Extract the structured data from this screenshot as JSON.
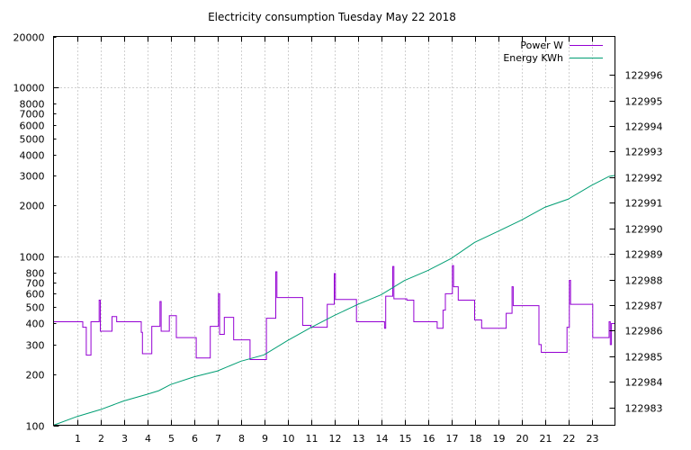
{
  "chart_data": {
    "type": "line",
    "title": "Electricity consumption Tuesday May 22 2018",
    "xlabel": "",
    "ylabel": "",
    "xlim": [
      0,
      24
    ],
    "x_ticks": [
      1,
      2,
      3,
      4,
      5,
      6,
      7,
      8,
      9,
      10,
      11,
      12,
      13,
      14,
      15,
      16,
      17,
      18,
      19,
      20,
      21,
      22,
      23
    ],
    "y_scale": "log",
    "ylim": [
      100,
      20000
    ],
    "y_ticks": [
      100,
      200,
      300,
      400,
      500,
      600,
      700,
      800,
      1000,
      2000,
      3000,
      4000,
      5000,
      6000,
      7000,
      8000,
      10000,
      20000
    ],
    "y2lim": [
      122982.3,
      122997.5
    ],
    "y2_ticks": [
      122983,
      122984,
      122985,
      122986,
      122987,
      122988,
      122989,
      122990,
      122991,
      122992,
      122993,
      122994,
      122995,
      122996
    ],
    "grid": true,
    "legend_position": "top-right",
    "series": [
      {
        "name": "Power W",
        "axis": "y",
        "color": "#9400d3",
        "points": [
          [
            0.0,
            410
          ],
          [
            1.25,
            410
          ],
          [
            1.25,
            380
          ],
          [
            1.4,
            380
          ],
          [
            1.4,
            260
          ],
          [
            1.6,
            260
          ],
          [
            1.6,
            410
          ],
          [
            1.95,
            410
          ],
          [
            1.95,
            550
          ],
          [
            2.0,
            550
          ],
          [
            2.0,
            360
          ],
          [
            2.5,
            360
          ],
          [
            2.5,
            440
          ],
          [
            2.7,
            440
          ],
          [
            2.7,
            410
          ],
          [
            3.75,
            410
          ],
          [
            3.75,
            355
          ],
          [
            3.8,
            355
          ],
          [
            3.8,
            265
          ],
          [
            4.2,
            265
          ],
          [
            4.2,
            385
          ],
          [
            4.55,
            385
          ],
          [
            4.55,
            540
          ],
          [
            4.6,
            540
          ],
          [
            4.6,
            360
          ],
          [
            4.95,
            360
          ],
          [
            4.95,
            445
          ],
          [
            5.25,
            445
          ],
          [
            5.25,
            330
          ],
          [
            6.1,
            330
          ],
          [
            6.1,
            250
          ],
          [
            6.7,
            250
          ],
          [
            6.7,
            385
          ],
          [
            7.05,
            385
          ],
          [
            7.05,
            600
          ],
          [
            7.1,
            600
          ],
          [
            7.1,
            345
          ],
          [
            7.3,
            345
          ],
          [
            7.3,
            435
          ],
          [
            7.7,
            435
          ],
          [
            7.7,
            320
          ],
          [
            8.4,
            320
          ],
          [
            8.4,
            245
          ],
          [
            9.1,
            245
          ],
          [
            9.1,
            430
          ],
          [
            9.5,
            430
          ],
          [
            9.5,
            810
          ],
          [
            9.55,
            810
          ],
          [
            9.55,
            570
          ],
          [
            10.65,
            570
          ],
          [
            10.65,
            390
          ],
          [
            11.0,
            390
          ],
          [
            11.0,
            380
          ],
          [
            11.7,
            380
          ],
          [
            11.7,
            520
          ],
          [
            12.0,
            520
          ],
          [
            12.0,
            790
          ],
          [
            12.05,
            790
          ],
          [
            12.05,
            555
          ],
          [
            12.95,
            555
          ],
          [
            12.95,
            410
          ],
          [
            14.15,
            410
          ],
          [
            14.15,
            375
          ],
          [
            14.2,
            375
          ],
          [
            14.2,
            580
          ],
          [
            14.5,
            580
          ],
          [
            14.5,
            870
          ],
          [
            14.55,
            870
          ],
          [
            14.55,
            560
          ],
          [
            15.1,
            560
          ],
          [
            15.1,
            550
          ],
          [
            15.4,
            550
          ],
          [
            15.4,
            410
          ],
          [
            16.4,
            410
          ],
          [
            16.4,
            375
          ],
          [
            16.65,
            375
          ],
          [
            16.65,
            480
          ],
          [
            16.75,
            480
          ],
          [
            16.75,
            600
          ],
          [
            17.05,
            600
          ],
          [
            17.05,
            880
          ],
          [
            17.1,
            880
          ],
          [
            17.1,
            660
          ],
          [
            17.3,
            660
          ],
          [
            17.3,
            550
          ],
          [
            18.0,
            550
          ],
          [
            18.0,
            420
          ],
          [
            18.3,
            420
          ],
          [
            18.3,
            375
          ],
          [
            19.35,
            375
          ],
          [
            19.35,
            460
          ],
          [
            19.6,
            460
          ],
          [
            19.6,
            660
          ],
          [
            19.65,
            660
          ],
          [
            19.65,
            510
          ],
          [
            20.75,
            510
          ],
          [
            20.75,
            300
          ],
          [
            20.85,
            300
          ],
          [
            20.85,
            270
          ],
          [
            21.95,
            270
          ],
          [
            21.95,
            380
          ],
          [
            22.05,
            380
          ],
          [
            22.05,
            720
          ],
          [
            22.1,
            720
          ],
          [
            22.1,
            520
          ],
          [
            23.05,
            520
          ],
          [
            23.05,
            330
          ],
          [
            23.75,
            330
          ],
          [
            23.75,
            410
          ],
          [
            23.8,
            410
          ],
          [
            23.8,
            300
          ],
          [
            23.85,
            300
          ],
          [
            23.85,
            400
          ],
          [
            24.0,
            400
          ]
        ]
      },
      {
        "name": "Energy KWh",
        "axis": "y2",
        "color": "#009e73",
        "points": [
          [
            0.0,
            122982.3
          ],
          [
            1.0,
            122982.64
          ],
          [
            2.0,
            122982.91
          ],
          [
            3.0,
            122983.25
          ],
          [
            4.0,
            122983.51
          ],
          [
            4.5,
            122983.65
          ],
          [
            5.0,
            122983.89
          ],
          [
            6.0,
            122984.19
          ],
          [
            7.0,
            122984.42
          ],
          [
            8.0,
            122984.8
          ],
          [
            9.0,
            122985.05
          ],
          [
            10.0,
            122985.61
          ],
          [
            11.0,
            122986.12
          ],
          [
            12.0,
            122986.59
          ],
          [
            13.0,
            122987.02
          ],
          [
            14.0,
            122987.4
          ],
          [
            15.0,
            122987.96
          ],
          [
            16.0,
            122988.35
          ],
          [
            17.0,
            122988.82
          ],
          [
            18.0,
            122989.45
          ],
          [
            19.0,
            122989.88
          ],
          [
            20.0,
            122990.32
          ],
          [
            21.0,
            122990.82
          ],
          [
            22.0,
            122991.14
          ],
          [
            23.0,
            122991.68
          ],
          [
            23.75,
            122992.03
          ],
          [
            24.0,
            122992.07
          ]
        ]
      }
    ]
  }
}
